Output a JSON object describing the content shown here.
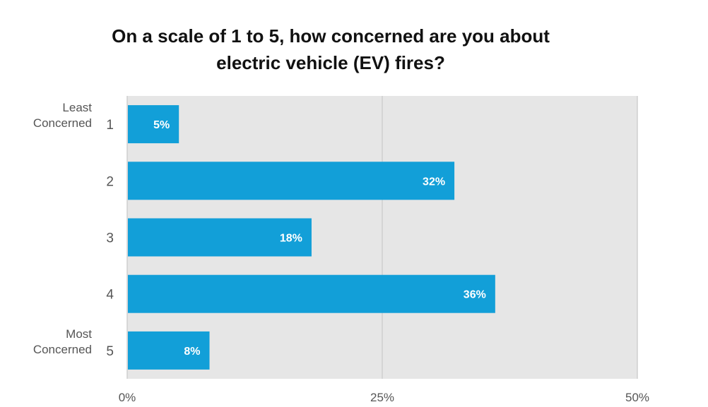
{
  "chart_data": {
    "type": "bar",
    "orientation": "horizontal",
    "title_lines": [
      "On a scale of 1 to 5, how concerned are you about",
      "electric vehicle (EV) fires?"
    ],
    "categories": [
      "1",
      "2",
      "3",
      "4",
      "5"
    ],
    "category_notes": [
      [
        "Least",
        "Concerned"
      ],
      [],
      [],
      [],
      [
        "Most",
        "Concerned"
      ]
    ],
    "values": [
      5,
      32,
      18,
      36,
      8
    ],
    "value_labels": [
      "5%",
      "32%",
      "18%",
      "36%",
      "8%"
    ],
    "xlim": [
      0,
      50
    ],
    "xticks": [
      0,
      25,
      50
    ],
    "xtick_labels": [
      "0%",
      "25%",
      "50%"
    ],
    "grid": true,
    "colors": {
      "bar": "#129fd8",
      "plot_background": "#e6e6e6",
      "gridline": "#cfcfcf",
      "bar_label": "#ffffff",
      "axis_text": "#555555",
      "title": "#111111"
    }
  }
}
